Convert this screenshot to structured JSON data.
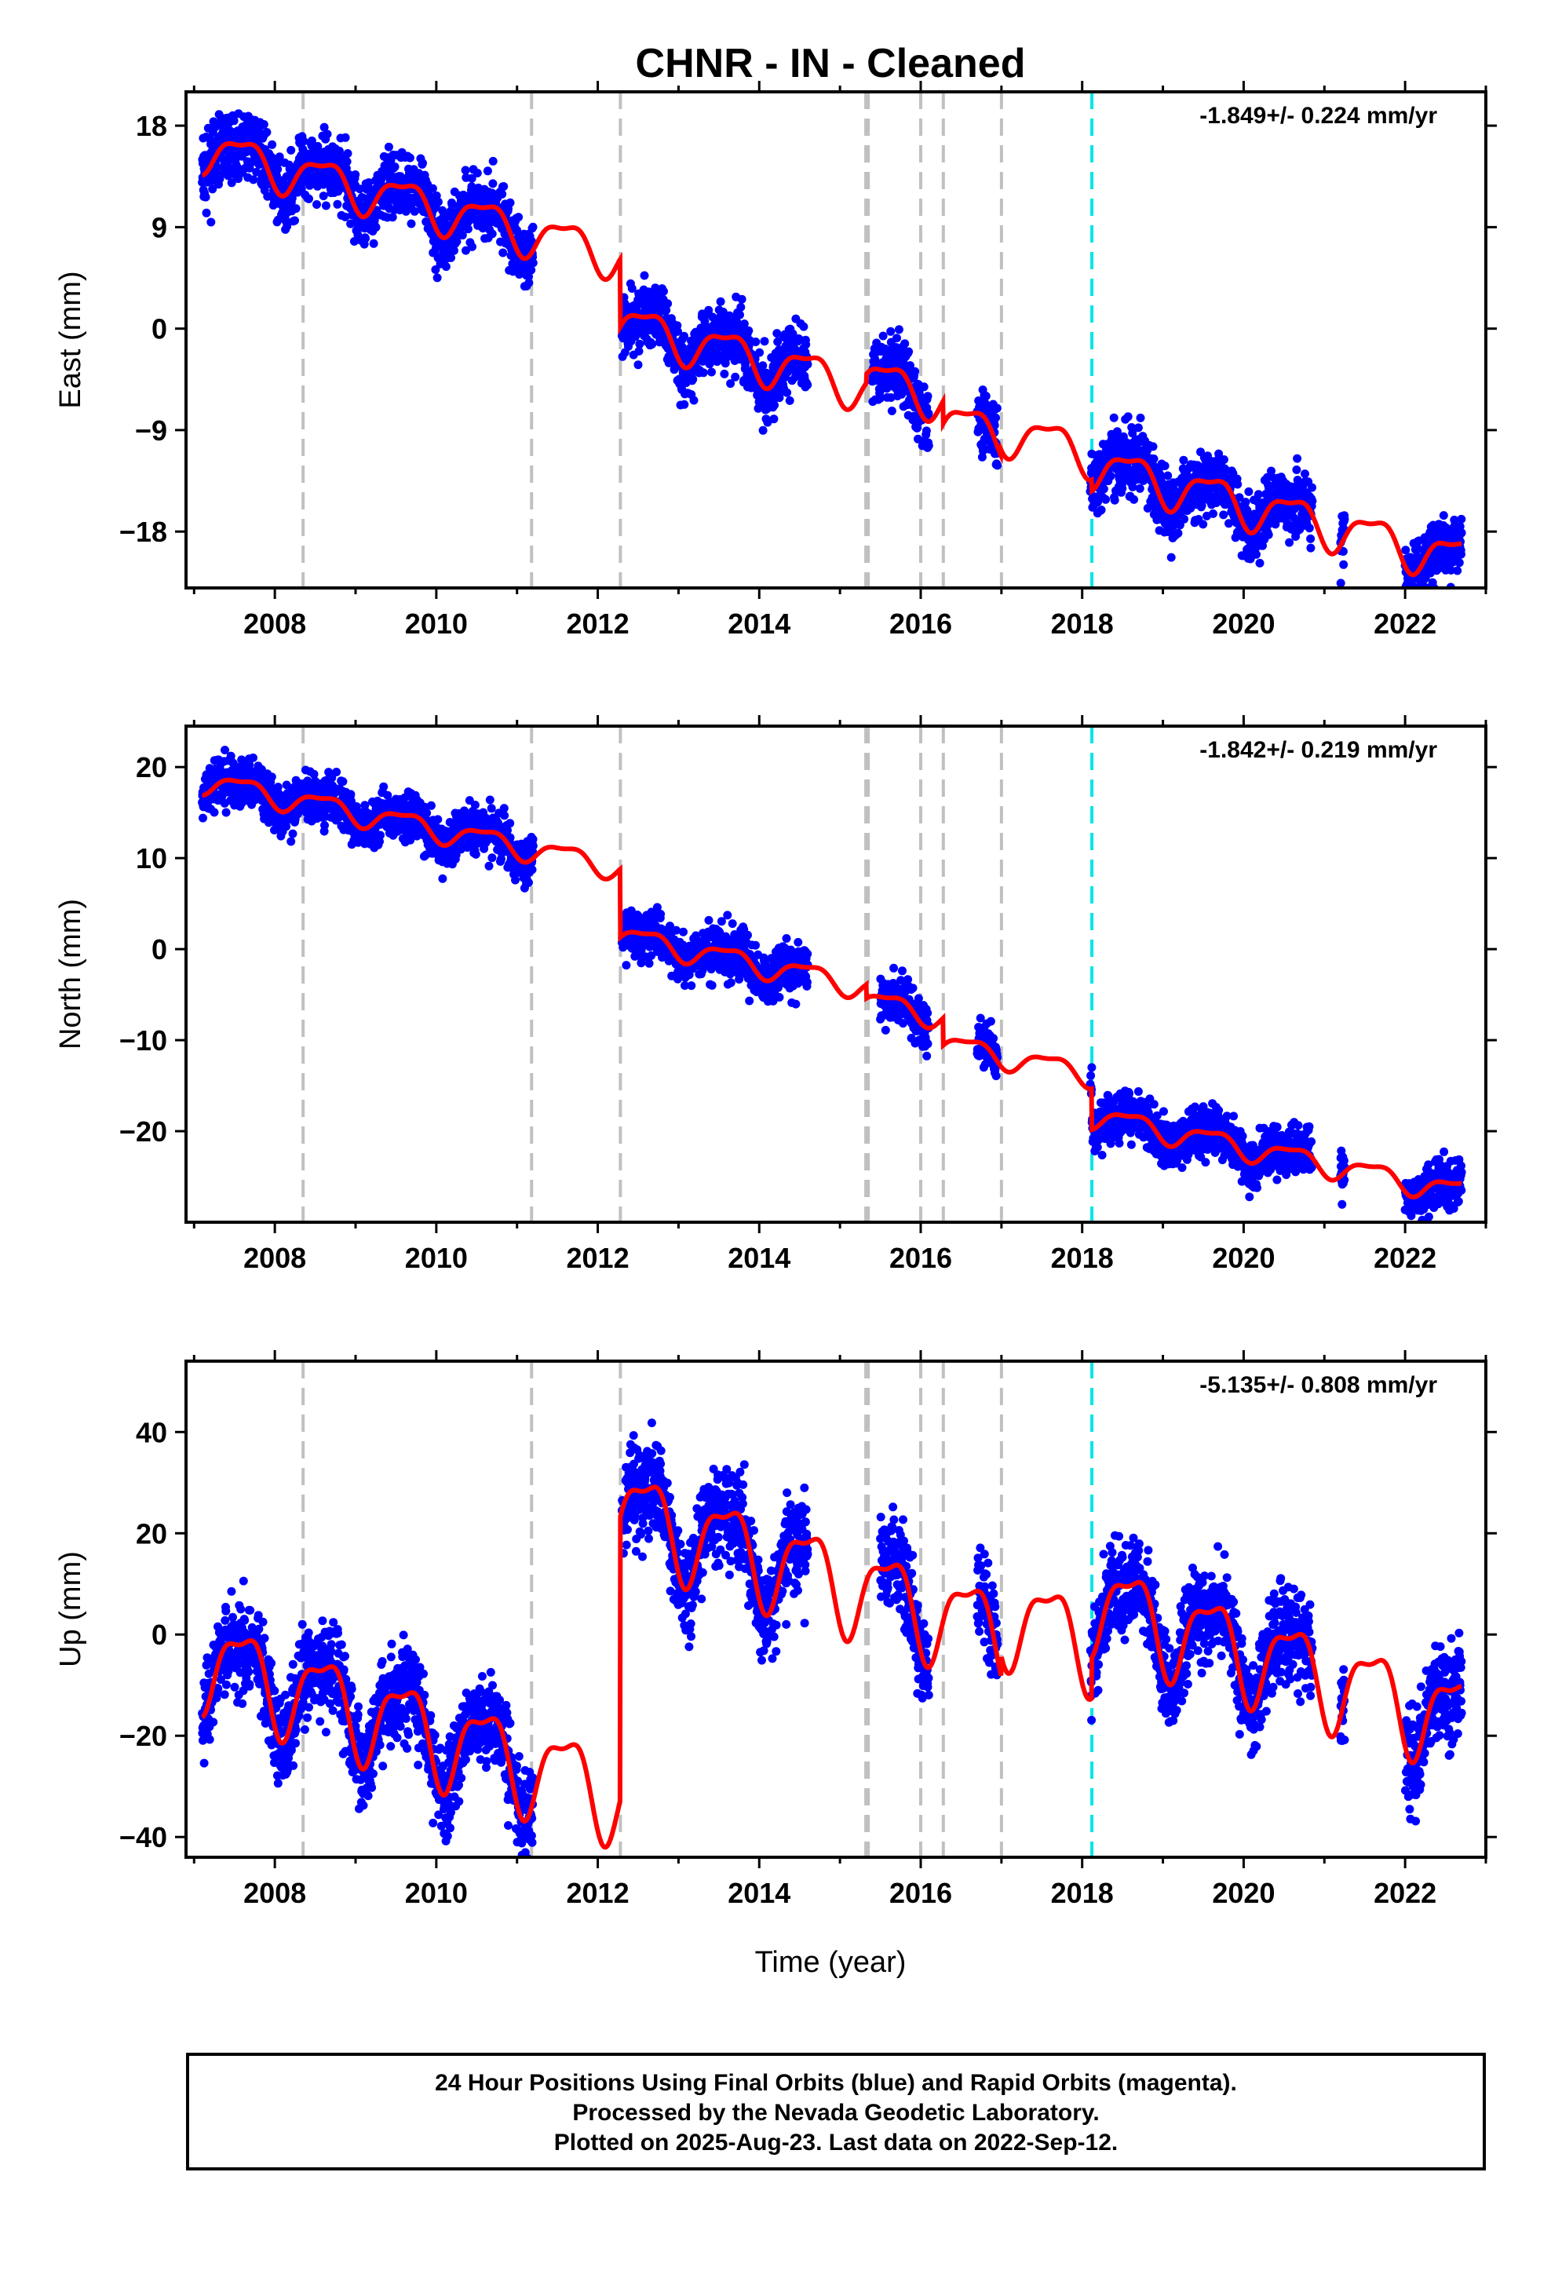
{
  "title": "CHNR  - IN - Cleaned",
  "xlabel": "Time (year)",
  "footer": {
    "line1": "24 Hour Positions Using Final Orbits (blue) and Rapid Orbits (magenta).",
    "line2": "Processed by the Nevada Geodetic Laboratory.",
    "line3": "Plotted on 2025-Aug-23. Last data on 2022-Sep-12."
  },
  "colors": {
    "final_orbits": "#0000ff",
    "rapid_orbits": "#ff00ff",
    "model": "#ff0000",
    "equipment_change": "#c0c0c0",
    "earthquake": "#00e5e5"
  },
  "chart_data": [
    {
      "type": "scatter",
      "panel": "east",
      "ylabel": "East (mm)",
      "rate_text": "-1.849+/- 0.224 mm/yr",
      "xlim": [
        2006.9,
        2023.0
      ],
      "ylim": [
        -23.0,
        21.0
      ],
      "xticks": [
        2008,
        2010,
        2012,
        2014,
        2016,
        2018,
        2020,
        2022
      ],
      "yticks": [
        -18,
        -9,
        0,
        9,
        18
      ],
      "rate": -1.849,
      "offsets": [
        {
          "epoch": 2011.18,
          "size": 0
        },
        {
          "epoch": 2012.28,
          "size": -6.0
        },
        {
          "epoch": 2015.33,
          "size": 0.8
        },
        {
          "epoch": 2016.28,
          "size": -2.0
        },
        {
          "epoch": 2017.0,
          "size": 0.5
        },
        {
          "epoch": 2018.12,
          "size": -1.0
        }
      ],
      "model_anchor": {
        "epoch": 2007.1,
        "value": 16.0
      },
      "seasonal_amplitude": 1.8,
      "noise": 1.4,
      "data_segments": [
        [
          2007.1,
          2011.2
        ],
        [
          2012.3,
          2014.6
        ],
        [
          2015.4,
          2016.1
        ],
        [
          2016.7,
          2016.95
        ],
        [
          2018.1,
          2020.85
        ],
        [
          2021.2,
          2021.25
        ],
        [
          2022.0,
          2022.7
        ]
      ],
      "reference_lines": {
        "gray": [
          2008.35,
          2011.18,
          2012.28,
          2015.32,
          2015.35,
          2016.0,
          2016.28,
          2017.0
        ],
        "cyan": [
          2018.12
        ]
      }
    },
    {
      "type": "scatter",
      "panel": "north",
      "ylabel": "North (mm)",
      "rate_text": "-1.842+/- 0.219 mm/yr",
      "xlim": [
        2006.9,
        2023.0
      ],
      "ylim": [
        -30.0,
        24.5
      ],
      "xticks": [
        2008,
        2010,
        2012,
        2014,
        2016,
        2018,
        2020,
        2022
      ],
      "yticks": [
        -20,
        -10,
        0,
        10,
        20
      ],
      "rate": -1.842,
      "offsets": [
        {
          "epoch": 2011.18,
          "size": 0
        },
        {
          "epoch": 2012.28,
          "size": -7.5
        },
        {
          "epoch": 2015.33,
          "size": -1.5
        },
        {
          "epoch": 2016.28,
          "size": -3.0
        },
        {
          "epoch": 2017.0,
          "size": 0
        },
        {
          "epoch": 2018.12,
          "size": -4.5
        }
      ],
      "model_anchor": {
        "epoch": 2007.1,
        "value": 18.5
      },
      "seasonal_amplitude": 1.2,
      "noise": 1.3,
      "data_segments": [
        [
          2007.1,
          2011.2
        ],
        [
          2012.3,
          2014.6
        ],
        [
          2015.5,
          2016.1
        ],
        [
          2016.7,
          2016.95
        ],
        [
          2018.1,
          2020.85
        ],
        [
          2021.2,
          2021.25
        ],
        [
          2022.0,
          2022.7
        ]
      ],
      "reference_lines": {
        "gray": [
          2008.35,
          2011.18,
          2012.28,
          2015.32,
          2015.35,
          2016.0,
          2016.28,
          2017.0
        ],
        "cyan": [
          2018.12
        ]
      }
    },
    {
      "type": "scatter",
      "panel": "up",
      "ylabel": "Up (mm)",
      "rate_text": "-5.135+/- 0.808 mm/yr",
      "xlim": [
        2006.9,
        2023.0
      ],
      "ylim": [
        -44.0,
        54.0
      ],
      "xticks": [
        2008,
        2010,
        2012,
        2014,
        2016,
        2018,
        2020,
        2022
      ],
      "yticks": [
        -40,
        -20,
        0,
        20,
        40
      ],
      "rate": -5.135,
      "offsets": [
        {
          "epoch": 2011.18,
          "size": 0
        },
        {
          "epoch": 2012.28,
          "size": 56.0
        },
        {
          "epoch": 2015.33,
          "size": 0
        },
        {
          "epoch": 2016.28,
          "size": 0
        },
        {
          "epoch": 2017.0,
          "size": 4.0
        },
        {
          "epoch": 2018.12,
          "size": 8.0
        }
      ],
      "model_anchor": {
        "epoch": 2007.1,
        "value": -5.0
      },
      "seasonal_amplitude": 8.5,
      "noise": 4.5,
      "data_segments": [
        [
          2007.1,
          2011.2
        ],
        [
          2012.3,
          2014.6
        ],
        [
          2015.5,
          2016.1
        ],
        [
          2016.7,
          2016.95
        ],
        [
          2018.1,
          2020.85
        ],
        [
          2021.2,
          2021.25
        ],
        [
          2022.0,
          2022.7
        ]
      ],
      "reference_lines": {
        "gray": [
          2008.35,
          2011.18,
          2012.28,
          2015.32,
          2015.35,
          2016.0,
          2016.28,
          2017.0
        ],
        "cyan": [
          2018.12
        ]
      }
    }
  ]
}
